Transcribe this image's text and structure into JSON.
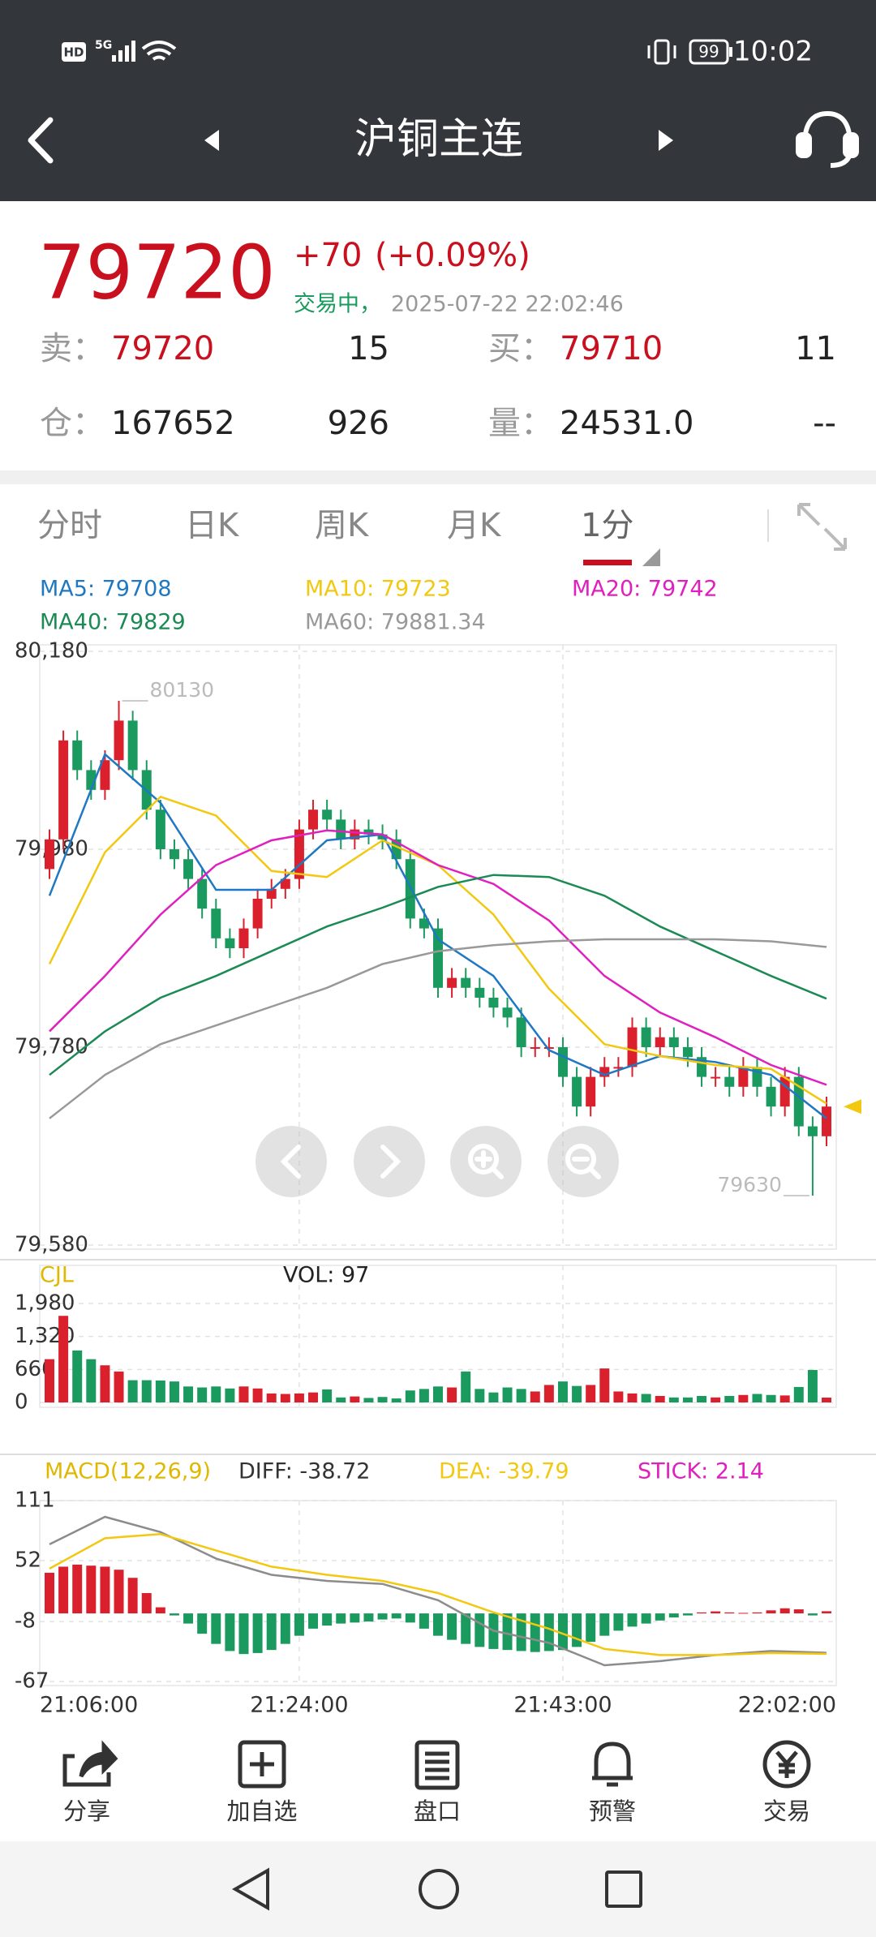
{
  "status_bar": {
    "hd": "HD",
    "network": "5G",
    "battery": "99",
    "time": "10:02"
  },
  "header": {
    "title": "沪铜主连"
  },
  "quote": {
    "price": "79720",
    "change": "+70",
    "change_pct": "(+0.09%)",
    "status": "交易中，",
    "datetime": "2025-07-22 22:02:46",
    "rows": [
      [
        {
          "label": "卖：",
          "value": "79720",
          "qty": "15"
        },
        {
          "label": "买：",
          "value": "79710",
          "qty": "11"
        }
      ],
      [
        {
          "label": "仓：",
          "value": "167652",
          "qty": "926"
        },
        {
          "label": "量：",
          "value": "24531.0",
          "qty": "--"
        }
      ]
    ]
  },
  "tabs": [
    "分时",
    "日K",
    "周K",
    "月K",
    "1分"
  ],
  "chart_data": [
    {
      "type": "candlestick",
      "up_color": "#d9202c",
      "down_color": "#1a9a5e",
      "candles": {
        "open": [
          79960,
          79990,
          80090,
          80060,
          80040,
          80070,
          80110,
          80060,
          80020,
          79980,
          79970,
          79950,
          79920,
          79890,
          79880,
          79900,
          79930,
          79940,
          79950,
          80000,
          80020,
          80010,
          79990,
          80000,
          79995,
          79990,
          79970,
          79910,
          79900,
          79840,
          79850,
          79840,
          79830,
          79820,
          79810,
          79780,
          79780,
          79780,
          79750,
          79720,
          79750,
          79760,
          79760,
          79800,
          79780,
          79790,
          79780,
          79770,
          79750,
          79750,
          79740,
          79760,
          79740,
          79720,
          79750,
          79700,
          79690
        ],
        "high": [
          80000,
          80100,
          80100,
          80070,
          80080,
          80130,
          80120,
          80070,
          80030,
          79990,
          79980,
          79960,
          79930,
          79900,
          79910,
          79940,
          79950,
          79960,
          80010,
          80030,
          80030,
          80020,
          80010,
          80010,
          80005,
          80000,
          79980,
          79920,
          79910,
          79860,
          79860,
          79850,
          79840,
          79830,
          79820,
          79790,
          79790,
          79790,
          79760,
          79760,
          79770,
          79770,
          79810,
          79810,
          79800,
          79800,
          79790,
          79780,
          79760,
          79760,
          79770,
          79770,
          79750,
          79760,
          79760,
          79710,
          79730
        ],
        "low": [
          79950,
          79980,
          80050,
          80030,
          80030,
          80060,
          80050,
          80010,
          79970,
          79960,
          79940,
          79910,
          79880,
          79870,
          79870,
          79890,
          79920,
          79930,
          79940,
          79990,
          80000,
          79980,
          79980,
          79985,
          79980,
          79960,
          79900,
          79890,
          79830,
          79830,
          79830,
          79820,
          79810,
          79800,
          79770,
          79770,
          79770,
          79740,
          79710,
          79710,
          79740,
          79750,
          79750,
          79770,
          79770,
          79770,
          79760,
          79740,
          79740,
          79730,
          79730,
          79730,
          79710,
          79710,
          79690,
          79630,
          79680
        ],
        "close": [
          79990,
          80090,
          80060,
          80040,
          80070,
          80110,
          80060,
          80020,
          79980,
          79970,
          79950,
          79920,
          79890,
          79880,
          79900,
          79930,
          79940,
          79950,
          80000,
          80020,
          80010,
          79990,
          80000,
          79995,
          79990,
          79970,
          79910,
          79900,
          79840,
          79850,
          79840,
          79830,
          79820,
          79810,
          79780,
          79780,
          79780,
          79750,
          79720,
          79750,
          79760,
          79760,
          79800,
          79780,
          79790,
          79780,
          79770,
          79750,
          79750,
          79740,
          79760,
          79740,
          79720,
          79750,
          79700,
          79690,
          79720
        ]
      },
      "ma_x": [
        0,
        4,
        8,
        12,
        16,
        20,
        24,
        28,
        32,
        36,
        40,
        44,
        48,
        52,
        56
      ],
      "series": [
        {
          "name": "MA5: 79708",
          "color": "#1f78c1",
          "values": [
            79933,
            80076,
            80027,
            79939,
            79939,
            79989,
            79995,
            79889,
            79852,
            79777,
            79752,
            79771,
            79765,
            79752,
            79708
          ]
        },
        {
          "name": "MA10: 79723",
          "color": "#f2c811",
          "values": [
            79864,
            79977,
            80033,
            80014,
            79958,
            79952,
            79989,
            79964,
            79914,
            79839,
            79783,
            79771,
            79762,
            79758,
            79723
          ]
        },
        {
          "name": "MA20: 79742",
          "color": "#e01fbf",
          "values": [
            79796,
            79852,
            79914,
            79964,
            79989,
            79999,
            79995,
            79964,
            79945,
            79908,
            79852,
            79815,
            79790,
            79762,
            79742
          ]
        },
        {
          "name": "MA40: 79829",
          "color": "#1b8a55",
          "values": [
            79752,
            79796,
            79830,
            79852,
            79877,
            79902,
            79921,
            79942,
            79954,
            79952,
            79933,
            79902,
            79877,
            79852,
            79829
          ]
        },
        {
          "name": "MA60: 79881.34",
          "color": "#999999",
          "values": [
            79708,
            79752,
            79783,
            79802,
            79821,
            79840,
            79864,
            79877,
            79883,
            79887,
            79889,
            79889,
            79889,
            79887,
            79881.34
          ]
        }
      ],
      "xlim": [
        0,
        56
      ],
      "ylim": [
        79580,
        80180
      ],
      "yticks": [
        {
          "value": 79580,
          "label": "79,580"
        },
        {
          "value": 79780,
          "label": "79,780"
        },
        {
          "value": 79980,
          "label": "79,980"
        },
        {
          "value": 80180,
          "label": "80,180"
        }
      ],
      "grid": true
    },
    {
      "type": "bar",
      "title": "CJL",
      "subtitle": "VOL: 97",
      "values": [
        866,
        1733,
        1040,
        866,
        743,
        619,
        445,
        445,
        440,
        420,
        320,
        300,
        320,
        280,
        320,
        280,
        180,
        170,
        180,
        200,
        260,
        100,
        120,
        90,
        110,
        80,
        240,
        270,
        320,
        300,
        620,
        270,
        200,
        300,
        270,
        220,
        350,
        420,
        330,
        350,
        680,
        220,
        180,
        170,
        130,
        100,
        100,
        130,
        100,
        130,
        150,
        170,
        150,
        140,
        310,
        650,
        97
      ],
      "xlim": [
        0,
        56
      ],
      "ylim": [
        0,
        1980
      ],
      "yticks": [
        0,
        660,
        {
          "value": 1320,
          "label": "1,320"
        },
        {
          "value": 1980,
          "label": "1,980"
        }
      ],
      "grid": true
    },
    {
      "type": "macd",
      "title": "MACD(12,26,9)",
      "line_x": [
        0,
        4,
        8,
        12,
        16,
        20,
        24,
        28,
        32,
        36,
        40,
        44,
        48,
        52,
        56
      ],
      "series": [
        {
          "name": "DIFF: -38.72",
          "color": "#8c8c8c",
          "values": [
            68,
            95,
            80,
            54,
            38,
            32,
            29,
            13,
            -17,
            -29,
            -51,
            -47,
            -41,
            -37,
            -38.72
          ]
        },
        {
          "name": "DEA: -39.79",
          "color": "#f2c811",
          "values": [
            44,
            74,
            78,
            62,
            46,
            38,
            32,
            20,
            1,
            -15,
            -35,
            -41,
            -41,
            -39,
            -39.79
          ]
        }
      ],
      "stick": {
        "name": "STICK: 2.14",
        "color": "#e01fbf",
        "values": [
          40,
          46,
          48,
          47,
          46,
          43,
          35,
          20,
          6,
          -2,
          -10,
          -20,
          -30,
          -37,
          -40,
          -39,
          -36,
          -30,
          -22,
          -15,
          -12,
          -10,
          -9,
          -8,
          -6,
          -5,
          -9,
          -15,
          -22,
          -26,
          -30,
          -33,
          -35,
          -36,
          -37,
          -38,
          -37,
          -36,
          -33,
          -28,
          -22,
          -17,
          -13,
          -10,
          -7,
          -4,
          -2,
          1,
          2,
          1,
          0.5,
          1,
          3,
          5,
          4,
          -2,
          2.14
        ]
      },
      "xlim": [
        0,
        56
      ],
      "ylim": [
        -67,
        111
      ],
      "yticks": [
        -67,
        -8,
        52,
        111
      ],
      "xticks": [
        {
          "value": 0,
          "label": "21:06:00"
        },
        {
          "value": 18,
          "label": "21:24:00"
        },
        {
          "value": 37,
          "label": "21:43:00"
        },
        {
          "value": 56,
          "label": "22:02:00"
        }
      ],
      "grid": true
    }
  ],
  "toolbar": [
    "分享",
    "加自选",
    "盘口",
    "预警",
    "交易"
  ]
}
